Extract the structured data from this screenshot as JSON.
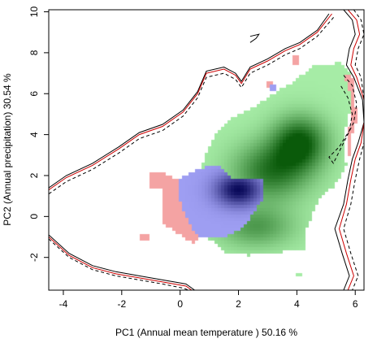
{
  "chart_data": {
    "type": "heatmap",
    "title": "",
    "xlabel": "PC1 (Annual mean temperature ) 50.16 %",
    "ylabel": "PC2 (Annual precipitation) 30.54 %",
    "xlim": [
      -4.5,
      6.3
    ],
    "ylim": [
      -3.6,
      10.1
    ],
    "xticks": [
      -4,
      -2,
      0,
      2,
      4,
      6
    ],
    "yticks": [
      -2,
      0,
      2,
      4,
      6,
      8,
      10
    ],
    "grid": false,
    "legend": "none",
    "colors": {
      "green_low": "#a6eca6",
      "green_high": "#0a5a0a",
      "blue_low": "#9e9ef2",
      "blue_high": "#0a0a5a",
      "red_overlap": "#f4a3a3",
      "env_line_black": "#000000",
      "env_line_red": "#cc0000"
    },
    "regions": [
      {
        "id": "species-a-density",
        "color": "green",
        "outline": [
          [
            0.1,
            0.3
          ],
          [
            0.6,
            1.9
          ],
          [
            0.9,
            3.1
          ],
          [
            1.2,
            4.0
          ],
          [
            1.7,
            4.8
          ],
          [
            2.4,
            5.2
          ],
          [
            2.9,
            5.7
          ],
          [
            3.4,
            6.2
          ],
          [
            3.9,
            6.6
          ],
          [
            4.6,
            7.4
          ],
          [
            5.5,
            7.5
          ],
          [
            5.9,
            7.0
          ],
          [
            5.9,
            5.5
          ],
          [
            5.6,
            4.0
          ],
          [
            5.7,
            2.5
          ],
          [
            5.3,
            1.5
          ],
          [
            4.8,
            0.9
          ],
          [
            4.5,
            0.0
          ],
          [
            4.3,
            -0.8
          ],
          [
            4.3,
            -1.6
          ],
          [
            3.1,
            -1.8
          ],
          [
            2.4,
            -1.9
          ],
          [
            1.6,
            -1.8
          ],
          [
            1.0,
            -1.1
          ],
          [
            0.4,
            -0.6
          ]
        ],
        "peaks": [
          {
            "x": 4.1,
            "y": 3.6,
            "weight": 1.0,
            "sx": 0.65,
            "sy": 0.9
          },
          {
            "x": 3.1,
            "y": 2.2,
            "weight": 0.8,
            "sx": 0.9,
            "sy": 1.0
          },
          {
            "x": 2.6,
            "y": -0.5,
            "weight": 0.55,
            "sx": 0.9,
            "sy": 0.7
          }
        ]
      },
      {
        "id": "species-b-density",
        "color": "blue",
        "outline": [
          [
            0.0,
            1.9
          ],
          [
            0.8,
            2.4
          ],
          [
            1.3,
            2.5
          ],
          [
            1.7,
            1.9
          ],
          [
            2.3,
            1.9
          ],
          [
            2.9,
            1.9
          ],
          [
            2.8,
            0.8
          ],
          [
            2.5,
            0.1
          ],
          [
            2.1,
            -0.6
          ],
          [
            1.5,
            -1.0
          ],
          [
            0.8,
            -1.1
          ],
          [
            0.4,
            -0.6
          ],
          [
            0.1,
            0.3
          ],
          [
            -0.1,
            1.2
          ]
        ],
        "peaks": [
          {
            "x": 2.0,
            "y": 1.3,
            "weight": 1.0,
            "sx": 0.55,
            "sy": 0.55
          }
        ]
      },
      {
        "id": "overlap-main",
        "color": "red",
        "outline": [
          [
            -1.1,
            2.1
          ],
          [
            -0.6,
            2.2
          ],
          [
            -0.2,
            1.8
          ],
          [
            0.0,
            1.9
          ],
          [
            -0.1,
            1.2
          ],
          [
            0.1,
            0.3
          ],
          [
            0.4,
            -0.6
          ],
          [
            0.7,
            -1.2
          ],
          [
            0.4,
            -1.3
          ],
          [
            -0.1,
            -0.8
          ],
          [
            -0.6,
            -0.4
          ],
          [
            -0.6,
            1.3
          ],
          [
            -1.1,
            1.3
          ]
        ]
      },
      {
        "id": "overlap-small-left",
        "color": "red",
        "outline": [
          [
            -1.4,
            -0.8
          ],
          [
            -1.05,
            -0.8
          ],
          [
            -1.05,
            -1.2
          ],
          [
            -1.4,
            -1.2
          ]
        ]
      },
      {
        "id": "overlap-top",
        "color": "red",
        "outline": [
          [
            3.8,
            7.8
          ],
          [
            4.1,
            7.8
          ],
          [
            4.1,
            7.4
          ],
          [
            3.8,
            7.4
          ]
        ]
      },
      {
        "id": "overlap-mid-top",
        "color": "red",
        "outline": [
          [
            3.0,
            6.6
          ],
          [
            3.2,
            6.6
          ],
          [
            3.2,
            6.3
          ],
          [
            3.0,
            6.3
          ]
        ]
      },
      {
        "id": "overlap-right-strip",
        "color": "red",
        "outline": [
          [
            5.6,
            7.0
          ],
          [
            5.9,
            6.9
          ],
          [
            6.0,
            5.7
          ],
          [
            6.05,
            4.7
          ],
          [
            5.9,
            4.0
          ],
          [
            5.8,
            3.0
          ],
          [
            5.7,
            2.6
          ],
          [
            5.75,
            3.7
          ],
          [
            5.85,
            5.0
          ],
          [
            5.8,
            6.2
          ]
        ]
      },
      {
        "id": "green-speck",
        "color": "green-light",
        "outline": [
          [
            4.0,
            -2.8
          ],
          [
            4.2,
            -2.8
          ],
          [
            4.2,
            -3.0
          ],
          [
            4.0,
            -3.0
          ]
        ]
      },
      {
        "id": "blue-speck",
        "color": "blue-light",
        "outline": [
          [
            3.1,
            6.5
          ],
          [
            3.3,
            6.5
          ],
          [
            3.3,
            6.2
          ],
          [
            3.1,
            6.2
          ]
        ]
      }
    ],
    "envelope_lines": [
      {
        "id": "envelope-outer-solid",
        "style": "solid",
        "color": "black",
        "points": [
          [
            -4.5,
            1.4
          ],
          [
            -3.9,
            2.0
          ],
          [
            -3.0,
            2.6
          ],
          [
            -2.1,
            3.4
          ],
          [
            -1.4,
            4.1
          ],
          [
            -0.6,
            4.5
          ],
          [
            0.1,
            5.2
          ],
          [
            0.6,
            6.1
          ],
          [
            0.9,
            7.1
          ],
          [
            1.5,
            7.3
          ],
          [
            1.9,
            7.0
          ],
          [
            2.1,
            6.6
          ],
          [
            2.4,
            7.3
          ],
          [
            3.0,
            7.7
          ],
          [
            3.6,
            8.2
          ],
          [
            4.1,
            8.5
          ],
          [
            4.7,
            9.1
          ],
          [
            5.1,
            9.9
          ]
        ]
      },
      {
        "id": "envelope-outer-red",
        "style": "solid",
        "color": "red",
        "points": [
          [
            -4.5,
            1.3
          ],
          [
            -3.9,
            1.9
          ],
          [
            -3.0,
            2.5
          ],
          [
            -2.1,
            3.3
          ],
          [
            -1.4,
            4.0
          ],
          [
            -0.6,
            4.4
          ],
          [
            0.1,
            5.1
          ],
          [
            0.6,
            6.0
          ],
          [
            0.9,
            7.0
          ],
          [
            1.5,
            7.2
          ],
          [
            1.9,
            6.9
          ],
          [
            2.1,
            6.5
          ],
          [
            2.4,
            7.2
          ],
          [
            3.0,
            7.6
          ],
          [
            3.6,
            8.1
          ],
          [
            4.1,
            8.4
          ],
          [
            4.7,
            9.0
          ],
          [
            5.2,
            9.9
          ]
        ]
      },
      {
        "id": "envelope-inner-dashed",
        "style": "dashed",
        "color": "black",
        "points": [
          [
            -4.5,
            1.1
          ],
          [
            -3.9,
            1.7
          ],
          [
            -3.0,
            2.3
          ],
          [
            -2.1,
            3.1
          ],
          [
            -1.4,
            3.8
          ],
          [
            -0.6,
            4.2
          ],
          [
            0.1,
            4.9
          ],
          [
            0.6,
            5.8
          ],
          [
            0.9,
            6.8
          ],
          [
            1.5,
            7.0
          ],
          [
            1.9,
            6.7
          ],
          [
            2.1,
            6.3
          ],
          [
            2.4,
            7.0
          ],
          [
            3.0,
            7.4
          ],
          [
            3.6,
            7.9
          ],
          [
            4.1,
            8.2
          ],
          [
            4.7,
            8.8
          ],
          [
            5.3,
            9.8
          ]
        ]
      },
      {
        "id": "envelope-right-solid",
        "style": "solid",
        "color": "black",
        "points": [
          [
            5.6,
            10.1
          ],
          [
            5.9,
            9.6
          ],
          [
            6.0,
            8.9
          ],
          [
            5.8,
            8.2
          ],
          [
            5.7,
            7.4
          ],
          [
            5.95,
            6.8
          ],
          [
            6.25,
            5.7
          ],
          [
            6.3,
            4.6
          ],
          [
            6.1,
            3.6
          ],
          [
            5.9,
            2.8
          ],
          [
            5.75,
            1.8
          ],
          [
            5.6,
            0.6
          ],
          [
            5.3,
            -0.6
          ],
          [
            5.55,
            -1.8
          ],
          [
            5.8,
            -2.9
          ],
          [
            5.6,
            -3.6
          ]
        ]
      },
      {
        "id": "envelope-right-red",
        "style": "solid",
        "color": "red",
        "points": [
          [
            5.75,
            10.1
          ],
          [
            6.05,
            9.6
          ],
          [
            6.15,
            8.9
          ],
          [
            5.95,
            8.2
          ],
          [
            5.85,
            7.4
          ],
          [
            6.05,
            6.8
          ],
          [
            6.3,
            5.7
          ],
          [
            6.3,
            4.6
          ],
          [
            6.2,
            3.6
          ],
          [
            6.0,
            2.8
          ],
          [
            5.85,
            1.8
          ],
          [
            5.7,
            0.6
          ],
          [
            5.45,
            -0.6
          ],
          [
            5.7,
            -1.8
          ],
          [
            5.95,
            -2.9
          ],
          [
            5.75,
            -3.6
          ]
        ]
      },
      {
        "id": "envelope-right-dashed",
        "style": "dashed",
        "color": "black",
        "points": [
          [
            5.95,
            10.1
          ],
          [
            6.2,
            9.6
          ],
          [
            6.3,
            8.9
          ],
          [
            6.1,
            8.2
          ],
          [
            6.0,
            7.4
          ],
          [
            6.2,
            6.8
          ],
          [
            6.3,
            5.7
          ],
          [
            6.3,
            4.6
          ],
          [
            6.3,
            3.6
          ],
          [
            6.15,
            2.8
          ],
          [
            6.0,
            1.8
          ],
          [
            5.85,
            0.6
          ],
          [
            5.6,
            -0.6
          ],
          [
            5.85,
            -1.8
          ],
          [
            6.1,
            -2.9
          ],
          [
            5.9,
            -3.6
          ]
        ]
      },
      {
        "id": "envelope-inner-loop",
        "style": "dashed",
        "color": "black",
        "points": [
          [
            5.6,
            6.9
          ],
          [
            5.9,
            6.4
          ],
          [
            6.05,
            5.5
          ],
          [
            5.95,
            4.6
          ],
          [
            5.6,
            3.6
          ],
          [
            5.25,
            2.6
          ],
          [
            5.1,
            2.9
          ],
          [
            5.45,
            3.4
          ],
          [
            5.8,
            4.2
          ],
          [
            5.9,
            5.0
          ],
          [
            5.75,
            5.8
          ],
          [
            5.5,
            6.4
          ]
        ]
      },
      {
        "id": "envelope-top-small",
        "style": "solid",
        "color": "black",
        "points": [
          [
            2.4,
            8.5
          ],
          [
            2.6,
            8.7
          ],
          [
            2.7,
            8.9
          ],
          [
            2.4,
            8.8
          ]
        ]
      },
      {
        "id": "envelope-bottom-solid",
        "style": "solid",
        "color": "black",
        "points": [
          [
            -4.5,
            -0.9
          ],
          [
            -3.8,
            -1.8
          ],
          [
            -3.0,
            -2.4
          ],
          [
            -2.2,
            -2.7
          ],
          [
            -1.4,
            -2.9
          ],
          [
            -0.6,
            -3.1
          ],
          [
            0.2,
            -3.3
          ],
          [
            0.5,
            -3.6
          ]
        ]
      },
      {
        "id": "envelope-bottom-red",
        "style": "solid",
        "color": "red",
        "points": [
          [
            -4.5,
            -1.0
          ],
          [
            -3.8,
            -1.9
          ],
          [
            -3.0,
            -2.5
          ],
          [
            -2.2,
            -2.8
          ],
          [
            -1.4,
            -3.0
          ],
          [
            -0.6,
            -3.2
          ],
          [
            0.2,
            -3.4
          ],
          [
            0.4,
            -3.6
          ]
        ]
      },
      {
        "id": "envelope-bottom-dashed",
        "style": "dashed",
        "color": "black",
        "points": [
          [
            -4.5,
            -1.1
          ],
          [
            -3.8,
            -2.0
          ],
          [
            -3.0,
            -2.6
          ],
          [
            -2.2,
            -2.9
          ],
          [
            -1.4,
            -3.1
          ],
          [
            -0.6,
            -3.3
          ],
          [
            0.1,
            -3.5
          ],
          [
            0.3,
            -3.6
          ]
        ]
      }
    ]
  }
}
